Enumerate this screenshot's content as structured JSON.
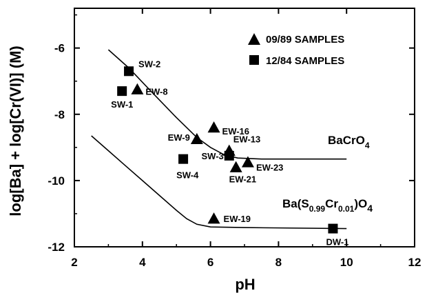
{
  "chart_data": {
    "type": "scatter",
    "xlabel": "pH",
    "ylabel": "log[Ba] + log[Cr(VI)]  (M)",
    "xlim": [
      2,
      12
    ],
    "ylim": [
      -12,
      -4.8
    ],
    "xticks": [
      "2",
      "4",
      "6",
      "8",
      "10",
      "12"
    ],
    "yticks": [
      "-6",
      "-8",
      "-10",
      "-12"
    ],
    "legend": {
      "position": "top-right",
      "entries": [
        {
          "marker": "triangle",
          "label": "09/89 SAMPLES"
        },
        {
          "marker": "square",
          "label": "12/84 SAMPLES"
        }
      ]
    },
    "series": [
      {
        "name": "09/89 SAMPLES",
        "marker": "triangle",
        "points": [
          {
            "label": "EW-8",
            "x": 3.85,
            "y": -7.25
          },
          {
            "label": "EW-9",
            "x": 5.6,
            "y": -8.75
          },
          {
            "label": "EW-16",
            "x": 6.1,
            "y": -8.4
          },
          {
            "label": "EW-13",
            "x": 6.55,
            "y": -9.1
          },
          {
            "label": "EW-21",
            "x": 6.75,
            "y": -9.6
          },
          {
            "label": "EW-23",
            "x": 7.1,
            "y": -9.45
          },
          {
            "label": "EW-19",
            "x": 6.1,
            "y": -11.15
          }
        ]
      },
      {
        "name": "12/84 SAMPLES",
        "marker": "square",
        "points": [
          {
            "label": "SW-2",
            "x": 3.6,
            "y": -6.7
          },
          {
            "label": "SW-1",
            "x": 3.4,
            "y": -7.3
          },
          {
            "label": "SW-4",
            "x": 5.2,
            "y": -9.35
          },
          {
            "label": "SW-3",
            "x": 6.55,
            "y": -9.25
          },
          {
            "label": "DW-1",
            "x": 9.6,
            "y": -11.45
          }
        ]
      }
    ],
    "curves": [
      {
        "label_main": "BaCrO",
        "label_sub": "4",
        "points": [
          [
            3.0,
            -6.05
          ],
          [
            3.6,
            -6.6
          ],
          [
            4.2,
            -7.25
          ],
          [
            5.0,
            -8.1
          ],
          [
            5.6,
            -8.7
          ],
          [
            6.0,
            -9.0
          ],
          [
            6.4,
            -9.22
          ],
          [
            6.8,
            -9.32
          ],
          [
            7.5,
            -9.35
          ],
          [
            10.0,
            -9.35
          ]
        ]
      },
      {
        "label_main": "Ba(S",
        "label_sub1": "0.99",
        "label_mid": "Cr",
        "label_sub2": "0.01",
        "label_end": ")O",
        "label_sub3": "4",
        "points": [
          [
            2.5,
            -8.65
          ],
          [
            3.0,
            -9.1
          ],
          [
            3.5,
            -9.55
          ],
          [
            4.0,
            -10.0
          ],
          [
            4.5,
            -10.45
          ],
          [
            5.0,
            -10.9
          ],
          [
            5.3,
            -11.15
          ],
          [
            5.6,
            -11.32
          ],
          [
            6.0,
            -11.4
          ],
          [
            7.0,
            -11.42
          ],
          [
            10.0,
            -11.45
          ]
        ]
      }
    ]
  }
}
